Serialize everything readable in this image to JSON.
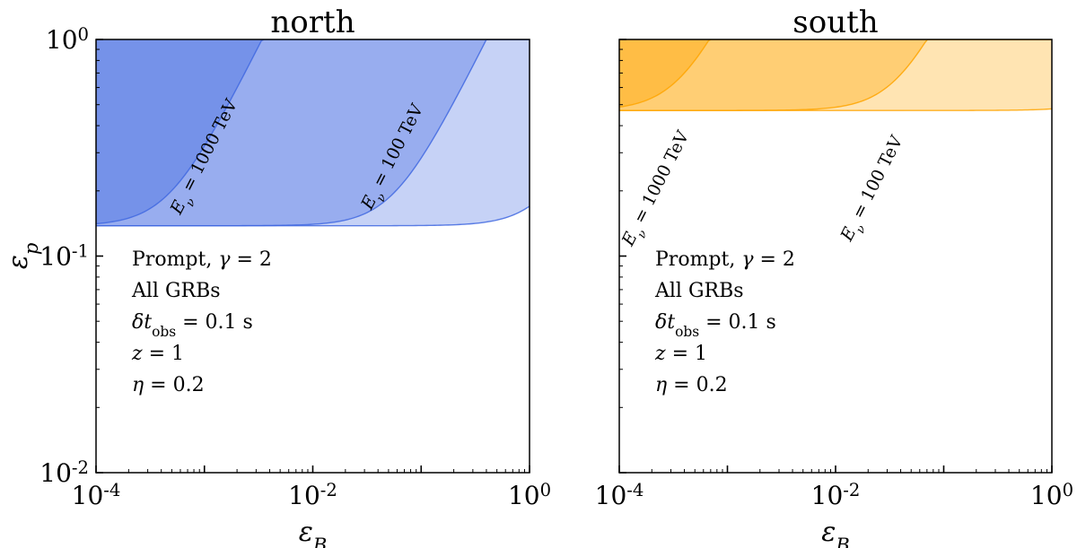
{
  "chart_data": [
    {
      "type": "area",
      "title": "north",
      "xlabel": "εB",
      "ylabel": "εp",
      "xscale": "log",
      "yscale": "log",
      "xlim": [
        0.0001,
        1
      ],
      "ylim": [
        0.01,
        1
      ],
      "x_ticks": [
        {
          "value": 0.0001,
          "base": "10",
          "exp": "-4"
        },
        {
          "value": 0.01,
          "base": "10",
          "exp": "-2"
        },
        {
          "value": 1,
          "base": "10",
          "exp": "0"
        }
      ],
      "y_ticks": [
        {
          "value": 0.01,
          "base": "10",
          "exp": "-2"
        },
        {
          "value": 0.1,
          "base": "10",
          "exp": "-1"
        },
        {
          "value": 1,
          "base": "10",
          "exp": "0"
        }
      ],
      "ep_floor": 0.138,
      "color": "#4169e1",
      "regions": [
        {
          "name": "",
          "note": "all shaded",
          "x_knee": 1,
          "x_top": 10,
          "opacity": 0.3
        },
        {
          "name": "Eν = 100 TeV",
          "x_knee": 0.0055,
          "x_top": 0.4,
          "opacity": 0.35
        },
        {
          "name": "Eν = 1000 TeV",
          "x_knee": 0.00012,
          "x_top": 0.0034,
          "opacity": 0.4
        }
      ],
      "labels": [
        {
          "text": "Eν = 1000 TeV",
          "x": 0.0011,
          "y": 0.28
        },
        {
          "text": "Eν = 100 TeV",
          "x": 0.06,
          "y": 0.28
        }
      ],
      "annotation": [
        "Prompt, γ = 2",
        "All GRBs",
        "δt_obs = 0.1 s",
        "z = 1",
        "η = 0.2"
      ]
    },
    {
      "type": "area",
      "title": "south",
      "xlabel": "εB",
      "ylabel": "",
      "xscale": "log",
      "yscale": "log",
      "xlim": [
        0.0001,
        1
      ],
      "ylim": [
        0.01,
        1
      ],
      "x_ticks": [
        {
          "value": 0.0001,
          "base": "10",
          "exp": "-4"
        },
        {
          "value": 0.01,
          "base": "10",
          "exp": "-2"
        },
        {
          "value": 1,
          "base": "10",
          "exp": "0"
        }
      ],
      "y_ticks": [],
      "ep_floor": 0.47,
      "color": "#ffa500",
      "regions": [
        {
          "name": "",
          "note": "all shaded",
          "x_knee": 1,
          "x_top": 10,
          "opacity": 0.3
        },
        {
          "name": "Eν = 100 TeV",
          "x_knee": 0.012,
          "x_top": 0.07,
          "opacity": 0.35
        },
        {
          "name": "Eν = 1000 TeV",
          "x_knee": 0.00013,
          "x_top": 0.00068,
          "opacity": 0.4
        }
      ],
      "labels": [
        {
          "text": "Eν = 1000 TeV",
          "x": 0.00024,
          "y": 0.2
        },
        {
          "text": "Eν = 100 TeV",
          "x": 0.024,
          "y": 0.2
        }
      ],
      "annotation": [
        "Prompt, γ = 2",
        "All GRBs",
        "δt_obs = 0.1 s",
        "z = 1",
        "η = 0.2"
      ]
    }
  ]
}
